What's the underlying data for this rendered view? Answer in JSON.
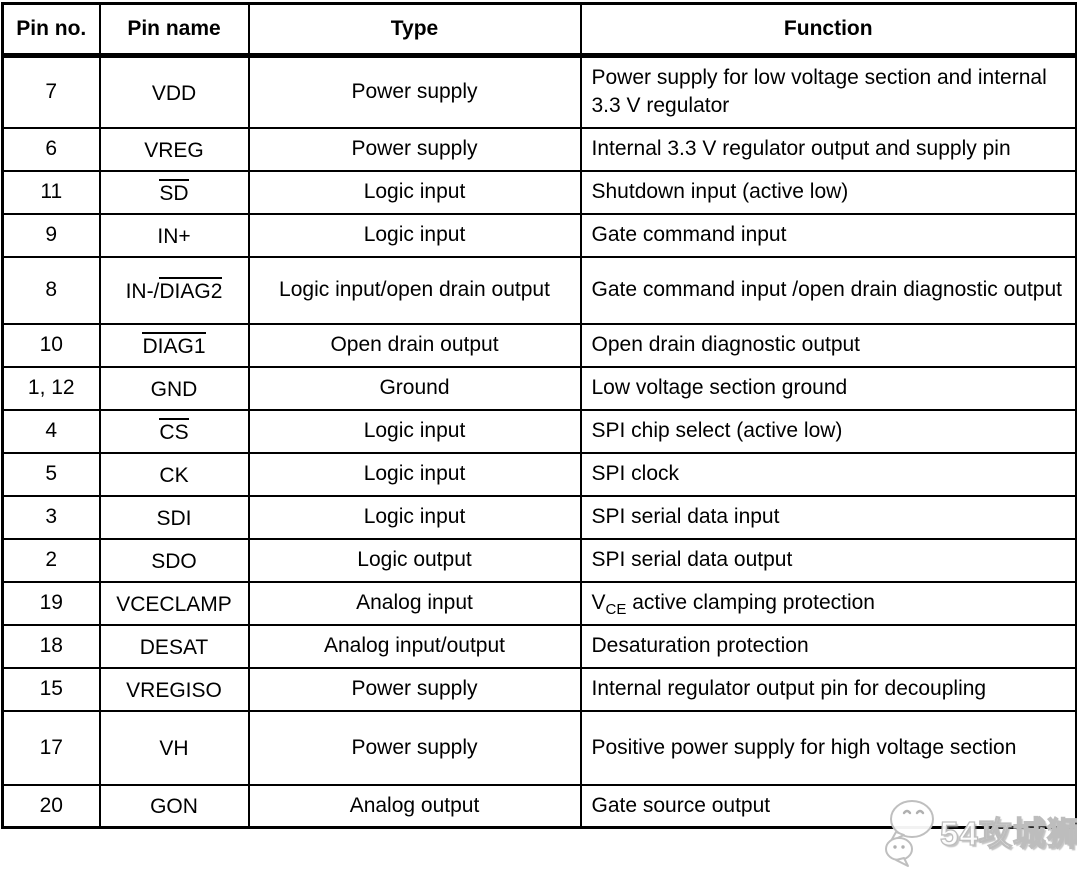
{
  "table": {
    "headers": [
      "Pin no.",
      "Pin name",
      "Type",
      "Function"
    ],
    "rows": [
      {
        "pin_no": "7",
        "pin_name": [
          {
            "t": "VDD"
          }
        ],
        "type": "Power supply",
        "function": [
          {
            "t": "Power supply for low voltage section and internal 3.3 V regulator"
          }
        ],
        "height": "tall"
      },
      {
        "pin_no": "6",
        "pin_name": [
          {
            "t": "VREG"
          }
        ],
        "type": "Power supply",
        "function": [
          {
            "t": "Internal 3.3 V regulator output and supply pin"
          }
        ],
        "height": "single"
      },
      {
        "pin_no": "11",
        "pin_name": [
          {
            "t": "SD",
            "overline": true
          }
        ],
        "type": "Logic input",
        "function": [
          {
            "t": "Shutdown input (active low)"
          }
        ],
        "height": "single"
      },
      {
        "pin_no": "9",
        "pin_name": [
          {
            "t": "IN+"
          }
        ],
        "type": "Logic input",
        "function": [
          {
            "t": "Gate command input"
          }
        ],
        "height": "single"
      },
      {
        "pin_no": "8",
        "pin_name": [
          {
            "t": "IN-/"
          },
          {
            "t": "DIAG2",
            "overline": true
          }
        ],
        "type": "Logic input/open drain output",
        "function": [
          {
            "t": "Gate command input /open drain diagnostic output"
          }
        ],
        "height": "tall"
      },
      {
        "pin_no": "10",
        "pin_name": [
          {
            "t": "DIAG1",
            "overline": true
          }
        ],
        "type": "Open drain output",
        "function": [
          {
            "t": "Open drain diagnostic output"
          }
        ],
        "height": "single"
      },
      {
        "pin_no": "1, 12",
        "pin_name": [
          {
            "t": "GND"
          }
        ],
        "type": "Ground",
        "function": [
          {
            "t": "Low voltage section ground"
          }
        ],
        "height": "single"
      },
      {
        "pin_no": "4",
        "pin_name": [
          {
            "t": "CS",
            "overline": true
          }
        ],
        "type": "Logic input",
        "function": [
          {
            "t": "SPI chip select (active low)"
          }
        ],
        "height": "single"
      },
      {
        "pin_no": "5",
        "pin_name": [
          {
            "t": "CK"
          }
        ],
        "type": "Logic input",
        "function": [
          {
            "t": "SPI clock"
          }
        ],
        "height": "single"
      },
      {
        "pin_no": "3",
        "pin_name": [
          {
            "t": "SDI"
          }
        ],
        "type": "Logic input",
        "function": [
          {
            "t": "SPI serial data input"
          }
        ],
        "height": "single"
      },
      {
        "pin_no": "2",
        "pin_name": [
          {
            "t": "SDO"
          }
        ],
        "type": "Logic output",
        "function": [
          {
            "t": "SPI serial data output"
          }
        ],
        "height": "single"
      },
      {
        "pin_no": "19",
        "pin_name": [
          {
            "t": "VCECLAMP"
          }
        ],
        "type": "Analog input",
        "function": [
          {
            "t": "V"
          },
          {
            "t": "CE",
            "sub": true
          },
          {
            "t": " active clamping protection"
          }
        ],
        "height": "single"
      },
      {
        "pin_no": "18",
        "pin_name": [
          {
            "t": "DESAT"
          }
        ],
        "type": "Analog input/output",
        "function": [
          {
            "t": "Desaturation protection"
          }
        ],
        "height": "single"
      },
      {
        "pin_no": "15",
        "pin_name": [
          {
            "t": "VREGISO"
          }
        ],
        "type": "Power supply",
        "function": [
          {
            "t": "Internal regulator output pin for decoupling"
          }
        ],
        "height": "single"
      },
      {
        "pin_no": "17",
        "pin_name": [
          {
            "t": "VH"
          }
        ],
        "type": "Power supply",
        "function": [
          {
            "t": "Positive power supply for high voltage section"
          }
        ],
        "height": "xtall"
      },
      {
        "pin_no": "20",
        "pin_name": [
          {
            "t": "GON"
          }
        ],
        "type": "Analog output",
        "function": [
          {
            "t": "Gate source output"
          }
        ],
        "height": "single"
      }
    ]
  },
  "watermark": {
    "text": "54攻城狮",
    "logo": "wechat-logo",
    "text_color": "#ffffff",
    "outline_color": "#bdbdbd"
  },
  "colors": {
    "border": "#000000",
    "text": "#000000",
    "background": "#ffffff"
  }
}
